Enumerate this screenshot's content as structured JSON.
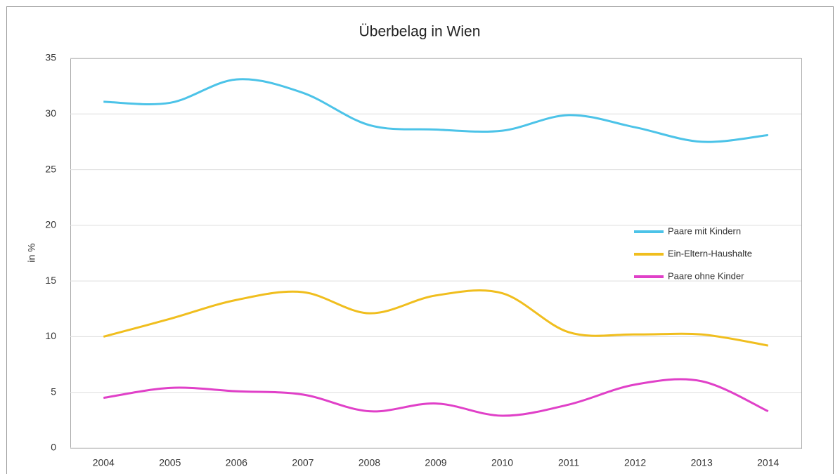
{
  "chart_data": {
    "type": "line",
    "title": "Überbelag in Wien",
    "ylabel": "in %",
    "categories": [
      "2004",
      "2005",
      "2006",
      "2007",
      "2008",
      "2009",
      "2010",
      "2011",
      "2012",
      "2013",
      "2014"
    ],
    "series": [
      {
        "name": "Paare mit Kindern",
        "color": "#4cc3e8",
        "values": [
          31.1,
          31.0,
          33.1,
          31.9,
          29.0,
          28.6,
          28.5,
          29.9,
          28.8,
          27.5,
          28.1
        ]
      },
      {
        "name": "Ein-Eltern-Haushalte",
        "color": "#f0be1e",
        "values": [
          10.0,
          11.6,
          13.3,
          14.0,
          12.1,
          13.7,
          13.9,
          10.4,
          10.2,
          10.2,
          9.2
        ]
      },
      {
        "name": "Paare ohne Kinder",
        "color": "#e040c8",
        "values": [
          4.5,
          5.4,
          5.1,
          4.8,
          3.3,
          4.0,
          2.9,
          3.9,
          5.7,
          6.0,
          3.3
        ]
      }
    ],
    "ylim": [
      0,
      35
    ],
    "yticks": [
      0,
      5,
      10,
      15,
      20,
      25,
      30,
      35
    ],
    "grid": true,
    "legend": "right"
  }
}
